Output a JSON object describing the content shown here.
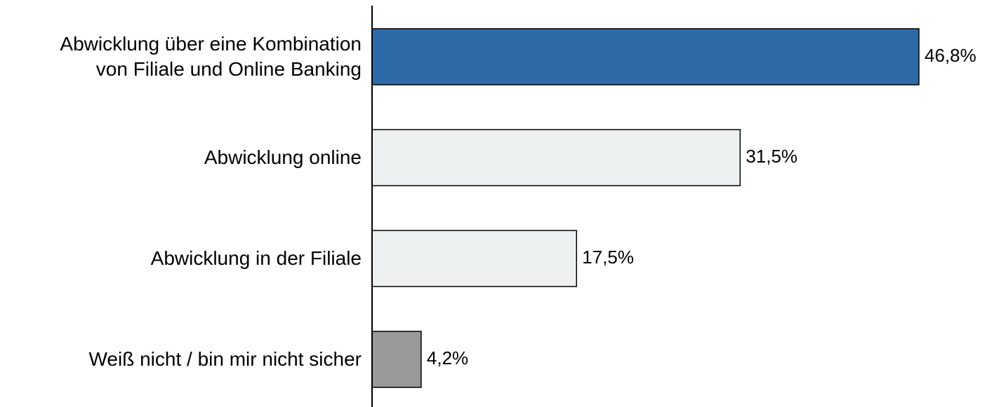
{
  "chart_data": {
    "type": "bar",
    "orientation": "horizontal",
    "categories": [
      "Abwicklung über eine Kombination\nvon Filiale und Online Banking",
      "Abwicklung online",
      "Abwicklung in der Filiale",
      "Weiß nicht / bin mir nicht sicher"
    ],
    "values": [
      46.8,
      31.5,
      17.5,
      4.2
    ],
    "value_labels": [
      "46,8%",
      "31,5%",
      "17,5%",
      "4,2%"
    ],
    "colors": [
      "#2e6aa8",
      "#eef1f2",
      "#eef1f2",
      "#999999"
    ]
  }
}
